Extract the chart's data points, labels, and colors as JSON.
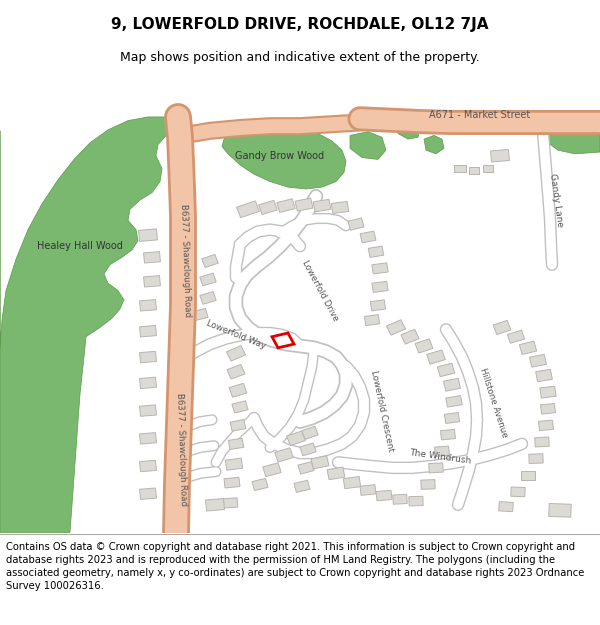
{
  "title": "9, LOWERFOLD DRIVE, ROCHDALE, OL12 7JA",
  "subtitle": "Map shows position and indicative extent of the property.",
  "footer": "Contains OS data © Crown copyright and database right 2021. This information is subject to Crown copyright and database rights 2023 and is reproduced with the permission of HM Land Registry. The polygons (including the associated geometry, namely x, y co-ordinates) are subject to Crown copyright and database rights 2023 Ordnance Survey 100026316.",
  "map_bg": "#f8f8f6",
  "road_main_color": "#f2c4a8",
  "road_main_outline": "#d4956e",
  "road_secondary_color": "#ffffff",
  "road_secondary_outline": "#c8c8c8",
  "green_color": "#7ab870",
  "building_color": "#dcdad5",
  "building_outline": "#b8b5af",
  "highlight_color": "#dd0000",
  "text_road_color": "#555555",
  "text_label_color": "#333333",
  "title_fontsize": 11,
  "subtitle_fontsize": 9,
  "footer_fontsize": 7.2,
  "white_line_color": "#ffffff"
}
